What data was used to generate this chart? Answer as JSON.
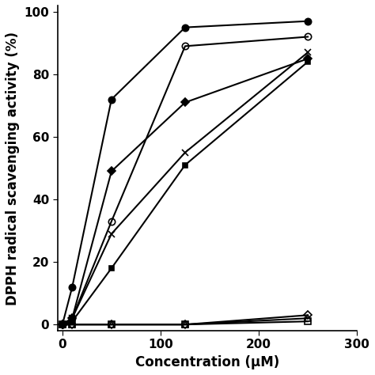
{
  "xlabel": "Concentration (μM)",
  "ylabel": "DPPH radical scavenging activity (%)",
  "xlim": [
    -5,
    300
  ],
  "ylim": [
    -2,
    102
  ],
  "xticks": [
    0,
    100,
    200,
    300
  ],
  "yticks": [
    0,
    20,
    40,
    60,
    80,
    100
  ],
  "series": [
    {
      "name": "filled_circle",
      "x": [
        0,
        10,
        50,
        125,
        250
      ],
      "y": [
        0,
        12,
        72,
        95,
        97
      ],
      "color": "black",
      "marker": "o",
      "fillstyle": "full",
      "markersize": 6,
      "linewidth": 1.5
    },
    {
      "name": "open_circle",
      "x": [
        0,
        10,
        50,
        125,
        250
      ],
      "y": [
        0,
        2,
        33,
        89,
        92
      ],
      "color": "black",
      "marker": "o",
      "fillstyle": "none",
      "markersize": 6,
      "linewidth": 1.5
    },
    {
      "name": "filled_diamond",
      "x": [
        0,
        10,
        50,
        125,
        250
      ],
      "y": [
        0,
        2,
        49,
        71,
        85
      ],
      "color": "black",
      "marker": "D",
      "fillstyle": "full",
      "markersize": 5,
      "linewidth": 1.5
    },
    {
      "name": "x_marker",
      "x": [
        0,
        10,
        50,
        125,
        250
      ],
      "y": [
        0,
        2,
        29,
        55,
        87
      ],
      "color": "black",
      "marker": "x",
      "fillstyle": "full",
      "markersize": 6,
      "linewidth": 1.5
    },
    {
      "name": "filled_square",
      "x": [
        0,
        10,
        50,
        125,
        250
      ],
      "y": [
        0,
        1,
        18,
        51,
        84
      ],
      "color": "black",
      "marker": "s",
      "fillstyle": "full",
      "markersize": 5,
      "linewidth": 1.5
    },
    {
      "name": "open_square",
      "x": [
        0,
        10,
        50,
        125,
        250
      ],
      "y": [
        0,
        0,
        0,
        0,
        1
      ],
      "color": "black",
      "marker": "s",
      "fillstyle": "none",
      "markersize": 6,
      "linewidth": 1.5
    },
    {
      "name": "open_diamond",
      "x": [
        0,
        10,
        50,
        125,
        250
      ],
      "y": [
        0,
        0,
        0,
        0,
        3
      ],
      "color": "black",
      "marker": "D",
      "fillstyle": "none",
      "markersize": 5,
      "linewidth": 1.5
    },
    {
      "name": "open_triangle",
      "x": [
        0,
        10,
        50,
        125,
        250
      ],
      "y": [
        0,
        0,
        0,
        0,
        2
      ],
      "color": "black",
      "marker": "^",
      "fillstyle": "none",
      "markersize": 6,
      "linewidth": 1.5
    }
  ],
  "background_color": "#ffffff",
  "label_fontsize": 12,
  "tick_fontsize": 11
}
